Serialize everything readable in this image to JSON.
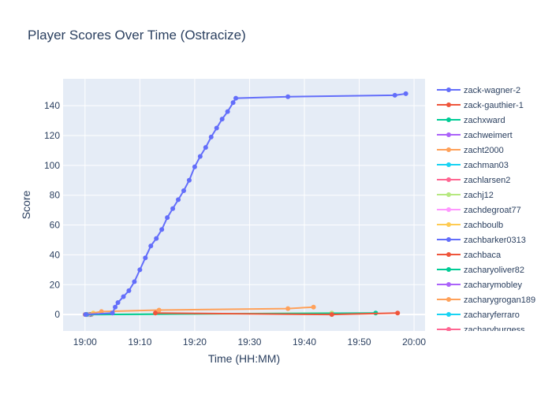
{
  "chart_data": {
    "type": "line",
    "title": "Player Scores Over Time (Ostracize)",
    "xlabel": "Time (HH:MM)",
    "ylabel": "Score",
    "xlim": [
      "18:56",
      "20:02"
    ],
    "ylim": [
      -11,
      158
    ],
    "x_ticks": [
      "19:00",
      "19:10",
      "19:20",
      "19:30",
      "19:40",
      "19:50",
      "20:00"
    ],
    "y_ticks": [
      0,
      20,
      40,
      60,
      80,
      100,
      120,
      140
    ],
    "grid": true,
    "legend_position": "right",
    "series": [
      {
        "name": "zack-wagner-2",
        "color": "#636efa",
        "points": [
          [
            "19:00:05",
            0
          ],
          [
            "19:05:00",
            1
          ],
          [
            "19:05:30",
            5
          ],
          [
            "19:06:00",
            8
          ],
          [
            "19:07:00",
            12
          ],
          [
            "19:08:00",
            16
          ],
          [
            "19:09:00",
            22
          ],
          [
            "19:10:00",
            30
          ],
          [
            "19:11:00",
            38
          ],
          [
            "19:12:00",
            46
          ],
          [
            "19:13:00",
            51
          ],
          [
            "19:14:00",
            57
          ],
          [
            "19:15:00",
            65
          ],
          [
            "19:16:00",
            71
          ],
          [
            "19:17:00",
            77
          ],
          [
            "19:18:00",
            83
          ],
          [
            "19:19:00",
            90
          ],
          [
            "19:20:00",
            99
          ],
          [
            "19:21:00",
            106
          ],
          [
            "19:22:00",
            112
          ],
          [
            "19:23:00",
            119
          ],
          [
            "19:24:00",
            125
          ],
          [
            "19:25:00",
            131
          ],
          [
            "19:26:00",
            136
          ],
          [
            "19:27:00",
            142
          ],
          [
            "19:27:30",
            145
          ],
          [
            "19:37:00",
            146
          ],
          [
            "19:56:30",
            147
          ],
          [
            "19:58:30",
            148
          ]
        ]
      },
      {
        "name": "zack-gauthier-1",
        "color": "#ef553b",
        "points": [
          [
            "19:12:50",
            1
          ],
          [
            "19:45:00",
            0
          ],
          [
            "19:57:00",
            1
          ]
        ]
      },
      {
        "name": "zachxward",
        "color": "#00cc96",
        "points": [
          [
            "19:00:10",
            0
          ],
          [
            "19:53:00",
            1
          ]
        ]
      },
      {
        "name": "zachweimert",
        "color": "#ab63fa",
        "points": [
          [
            "19:00:15",
            0
          ]
        ]
      },
      {
        "name": "zacht2000",
        "color": "#ffa15a",
        "points": [
          [
            "19:00:00",
            0
          ],
          [
            "19:03:00",
            2
          ],
          [
            "19:13:30",
            3
          ],
          [
            "19:37:00",
            4
          ],
          [
            "19:41:40",
            5
          ]
        ]
      },
      {
        "name": "zachman03",
        "color": "#19d3f3",
        "points": [
          [
            "19:00:20",
            0
          ]
        ]
      },
      {
        "name": "zachlarsen2",
        "color": "#ff6692",
        "points": [
          [
            "19:00:25",
            0
          ]
        ]
      },
      {
        "name": "zachj12",
        "color": "#b6e880",
        "points": [
          [
            "19:00:30",
            0
          ],
          [
            "19:45:00",
            1
          ]
        ]
      },
      {
        "name": "zachdegroat77",
        "color": "#ff97ff",
        "points": [
          [
            "19:00:35",
            0
          ]
        ]
      },
      {
        "name": "zachboulb",
        "color": "#fecb52",
        "points": [
          [
            "19:01:30",
            1
          ]
        ]
      },
      {
        "name": "zachbarker0313",
        "color": "#636efa",
        "points": [
          [
            "19:00:40",
            0
          ]
        ]
      },
      {
        "name": "zachbaca",
        "color": "#ef553b",
        "points": [
          [
            "19:00:45",
            0
          ]
        ]
      },
      {
        "name": "zacharyoliver82",
        "color": "#00cc96",
        "points": [
          [
            "19:00:50",
            0
          ]
        ]
      },
      {
        "name": "zacharymobley",
        "color": "#ab63fa",
        "points": [
          [
            "19:00:55",
            0
          ]
        ]
      },
      {
        "name": "zacharygrogan189",
        "color": "#ffa15a",
        "points": [
          [
            "19:01:00",
            0
          ]
        ]
      },
      {
        "name": "zacharyferraro",
        "color": "#19d3f3",
        "points": [
          [
            "19:01:05",
            0
          ]
        ]
      },
      {
        "name": "zacharyburgess",
        "color": "#ff6692",
        "points": [
          [
            "19:01:10",
            0
          ]
        ]
      }
    ]
  }
}
